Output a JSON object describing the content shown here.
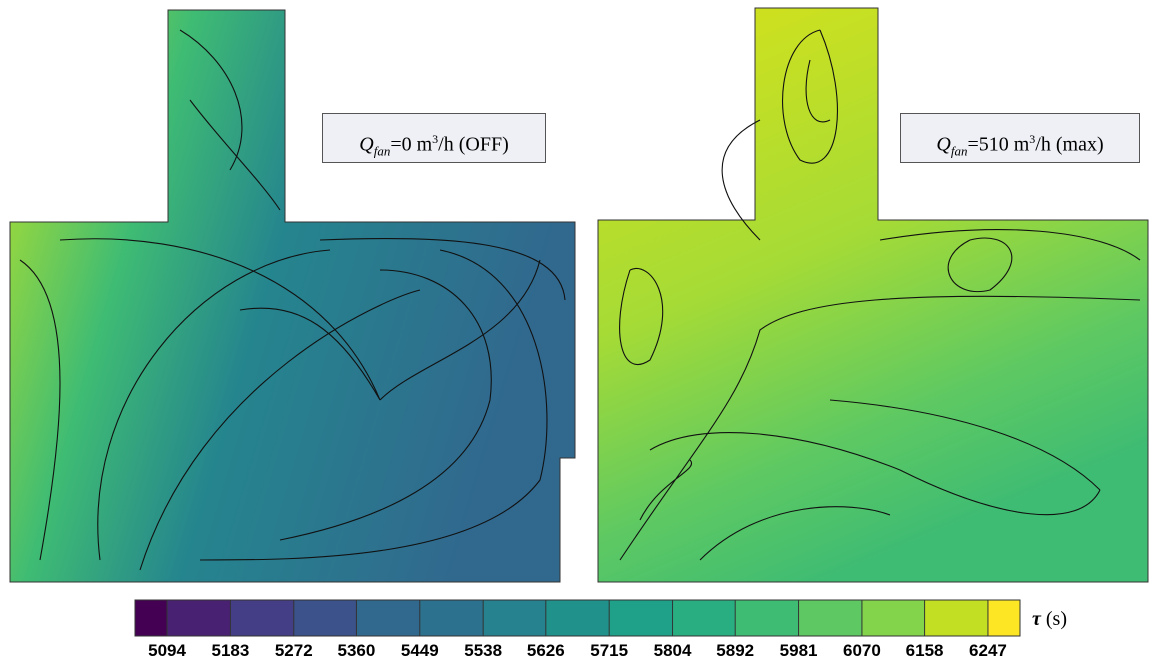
{
  "panels": [
    {
      "label": {
        "symbol": "Q",
        "subscript": "fan",
        "text": "=0 m",
        "superscript": "3",
        "suffix": "/h (OFF)"
      }
    },
    {
      "label": {
        "symbol": "Q",
        "subscript": "fan",
        "text": "=510 m",
        "superscript": "3",
        "suffix": "/h (max)"
      }
    }
  ],
  "chart_data": {
    "type": "colorbar",
    "colors": [
      "#440154",
      "#482173",
      "#433e85",
      "#3b528b",
      "#31688e",
      "#2c728e",
      "#26828e",
      "#21918c",
      "#1fa088",
      "#28ae80",
      "#3fbc73",
      "#5ec962",
      "#84d44b",
      "#c2df23",
      "#fde725"
    ],
    "ticks": [
      5094,
      5183,
      5272,
      5360,
      5449,
      5538,
      5626,
      5715,
      5804,
      5892,
      5981,
      6070,
      6158,
      6247
    ],
    "xlim": [
      5049,
      6292
    ],
    "title": {
      "symbol": "τ",
      "unit": "(s)"
    }
  }
}
